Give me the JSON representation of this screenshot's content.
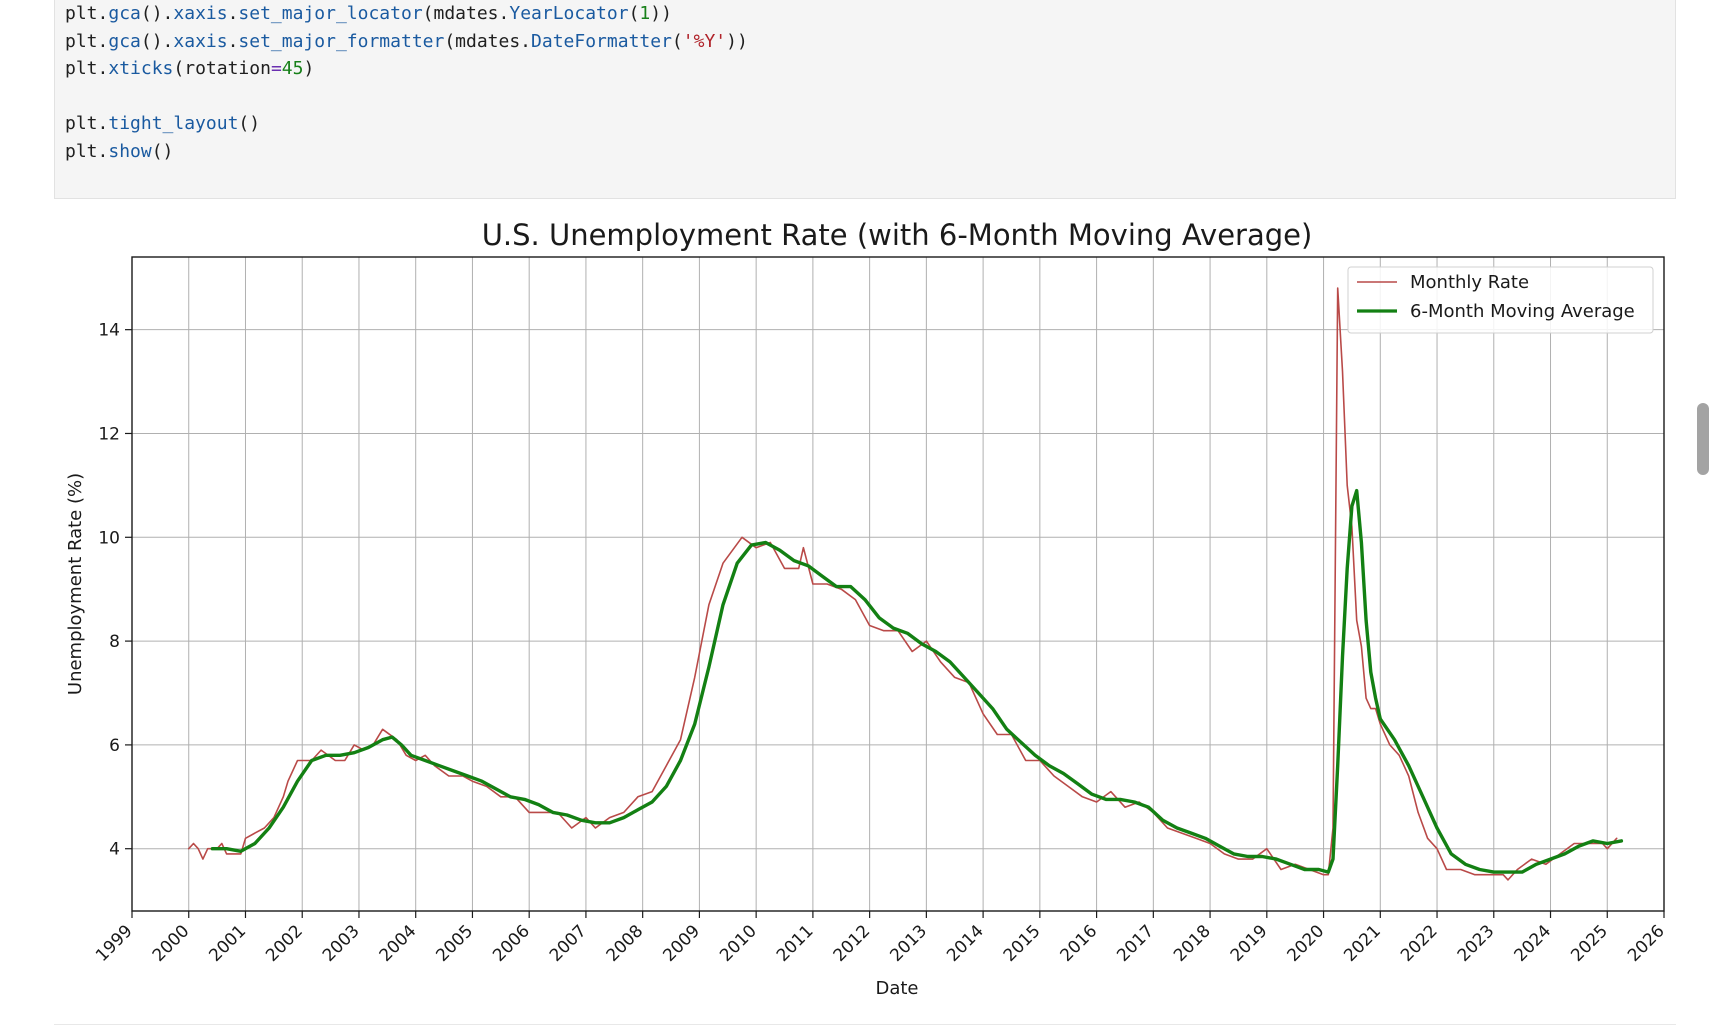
{
  "code_cell": {
    "lines": [
      [
        {
          "t": "plt",
          "c": "obj"
        },
        {
          "t": ".",
          "c": "obj"
        },
        {
          "t": "gca",
          "c": "fn"
        },
        {
          "t": "().",
          "c": "obj"
        },
        {
          "t": "xaxis",
          "c": "fn"
        },
        {
          "t": ".",
          "c": "obj"
        },
        {
          "t": "set_major_locator",
          "c": "fn"
        },
        {
          "t": "(mdates.",
          "c": "obj"
        },
        {
          "t": "YearLocator",
          "c": "fn"
        },
        {
          "t": "(",
          "c": "obj"
        },
        {
          "t": "1",
          "c": "num"
        },
        {
          "t": "))",
          "c": "obj"
        }
      ],
      [
        {
          "t": "plt",
          "c": "obj"
        },
        {
          "t": ".",
          "c": "obj"
        },
        {
          "t": "gca",
          "c": "fn"
        },
        {
          "t": "().",
          "c": "obj"
        },
        {
          "t": "xaxis",
          "c": "fn"
        },
        {
          "t": ".",
          "c": "obj"
        },
        {
          "t": "set_major_formatter",
          "c": "fn"
        },
        {
          "t": "(mdates.",
          "c": "obj"
        },
        {
          "t": "DateFormatter",
          "c": "fn"
        },
        {
          "t": "(",
          "c": "obj"
        },
        {
          "t": "'%Y'",
          "c": "str"
        },
        {
          "t": "))",
          "c": "obj"
        }
      ],
      [
        {
          "t": "plt",
          "c": "obj"
        },
        {
          "t": ".",
          "c": "obj"
        },
        {
          "t": "xticks",
          "c": "fn"
        },
        {
          "t": "(rotation",
          "c": "obj"
        },
        {
          "t": "=",
          "c": "op"
        },
        {
          "t": "45",
          "c": "num"
        },
        {
          "t": ")",
          "c": "obj"
        }
      ],
      [],
      [
        {
          "t": "plt",
          "c": "obj"
        },
        {
          "t": ".",
          "c": "obj"
        },
        {
          "t": "tight_layout",
          "c": "fn"
        },
        {
          "t": "()",
          "c": "obj"
        }
      ],
      [
        {
          "t": "plt",
          "c": "obj"
        },
        {
          "t": ".",
          "c": "obj"
        },
        {
          "t": "show",
          "c": "fn"
        },
        {
          "t": "()",
          "c": "obj"
        }
      ]
    ]
  },
  "colors": {
    "monthly": "#b94a48",
    "moving_avg": "#138013",
    "grid": "#b0b0b0",
    "code_bg": "#f5f5f5",
    "fn": "#1a5aa0",
    "num": "#18801a",
    "str": "#b0232a",
    "op": "#6a2fb0"
  },
  "chart_data": {
    "type": "line",
    "title": "U.S. Unemployment Rate (with 6-Month Moving Average)",
    "xlabel": "Date",
    "ylabel": "Unemployment Rate (%)",
    "xlim": [
      "1999-01",
      "2026-01"
    ],
    "ylim": [
      2.8,
      15.4
    ],
    "x_ticks": [
      "1999",
      "2000",
      "2001",
      "2002",
      "2003",
      "2004",
      "2005",
      "2006",
      "2007",
      "2008",
      "2009",
      "2010",
      "2011",
      "2012",
      "2013",
      "2014",
      "2015",
      "2016",
      "2017",
      "2018",
      "2019",
      "2020",
      "2021",
      "2022",
      "2023",
      "2024",
      "2025",
      "2026"
    ],
    "y_ticks": [
      4,
      6,
      8,
      10,
      12,
      14
    ],
    "grid": true,
    "legend_placement": "top-right",
    "series": [
      {
        "name": "Monthly Rate",
        "style": "thin",
        "points": [
          [
            "2000-01",
            4.0
          ],
          [
            "2000-02",
            4.1
          ],
          [
            "2000-03",
            4.0
          ],
          [
            "2000-04",
            3.8
          ],
          [
            "2000-05",
            4.0
          ],
          [
            "2000-06",
            4.0
          ],
          [
            "2000-07",
            4.0
          ],
          [
            "2000-08",
            4.1
          ],
          [
            "2000-09",
            3.9
          ],
          [
            "2000-10",
            3.9
          ],
          [
            "2000-11",
            3.9
          ],
          [
            "2000-12",
            3.9
          ],
          [
            "2001-01",
            4.2
          ],
          [
            "2001-03",
            4.3
          ],
          [
            "2001-05",
            4.4
          ],
          [
            "2001-07",
            4.6
          ],
          [
            "2001-09",
            5.0
          ],
          [
            "2001-10",
            5.3
          ],
          [
            "2001-12",
            5.7
          ],
          [
            "2002-03",
            5.7
          ],
          [
            "2002-05",
            5.9
          ],
          [
            "2002-08",
            5.7
          ],
          [
            "2002-10",
            5.7
          ],
          [
            "2002-12",
            6.0
          ],
          [
            "2003-02",
            5.9
          ],
          [
            "2003-04",
            6.0
          ],
          [
            "2003-06",
            6.3
          ],
          [
            "2003-09",
            6.1
          ],
          [
            "2003-11",
            5.8
          ],
          [
            "2004-01",
            5.7
          ],
          [
            "2004-03",
            5.8
          ],
          [
            "2004-05",
            5.6
          ],
          [
            "2004-08",
            5.4
          ],
          [
            "2004-11",
            5.4
          ],
          [
            "2005-01",
            5.3
          ],
          [
            "2005-04",
            5.2
          ],
          [
            "2005-07",
            5.0
          ],
          [
            "2005-10",
            5.0
          ],
          [
            "2006-01",
            4.7
          ],
          [
            "2006-04",
            4.7
          ],
          [
            "2006-07",
            4.7
          ],
          [
            "2006-10",
            4.4
          ],
          [
            "2007-01",
            4.6
          ],
          [
            "2007-03",
            4.4
          ],
          [
            "2007-06",
            4.6
          ],
          [
            "2007-09",
            4.7
          ],
          [
            "2007-12",
            5.0
          ],
          [
            "2008-03",
            5.1
          ],
          [
            "2008-06",
            5.6
          ],
          [
            "2008-09",
            6.1
          ],
          [
            "2008-12",
            7.3
          ],
          [
            "2009-03",
            8.7
          ],
          [
            "2009-06",
            9.5
          ],
          [
            "2009-10",
            10.0
          ],
          [
            "2010-01",
            9.8
          ],
          [
            "2010-04",
            9.9
          ],
          [
            "2010-07",
            9.4
          ],
          [
            "2010-10",
            9.4
          ],
          [
            "2010-11",
            9.8
          ],
          [
            "2011-01",
            9.1
          ],
          [
            "2011-04",
            9.1
          ],
          [
            "2011-07",
            9.0
          ],
          [
            "2011-10",
            8.8
          ],
          [
            "2012-01",
            8.3
          ],
          [
            "2012-04",
            8.2
          ],
          [
            "2012-07",
            8.2
          ],
          [
            "2012-10",
            7.8
          ],
          [
            "2013-01",
            8.0
          ],
          [
            "2013-04",
            7.6
          ],
          [
            "2013-07",
            7.3
          ],
          [
            "2013-10",
            7.2
          ],
          [
            "2014-01",
            6.6
          ],
          [
            "2014-04",
            6.2
          ],
          [
            "2014-07",
            6.2
          ],
          [
            "2014-10",
            5.7
          ],
          [
            "2015-01",
            5.7
          ],
          [
            "2015-04",
            5.4
          ],
          [
            "2015-07",
            5.2
          ],
          [
            "2015-10",
            5.0
          ],
          [
            "2016-01",
            4.9
          ],
          [
            "2016-04",
            5.1
          ],
          [
            "2016-07",
            4.8
          ],
          [
            "2016-10",
            4.9
          ],
          [
            "2017-01",
            4.7
          ],
          [
            "2017-04",
            4.4
          ],
          [
            "2017-07",
            4.3
          ],
          [
            "2017-10",
            4.2
          ],
          [
            "2018-01",
            4.1
          ],
          [
            "2018-04",
            3.9
          ],
          [
            "2018-07",
            3.8
          ],
          [
            "2018-10",
            3.8
          ],
          [
            "2019-01",
            4.0
          ],
          [
            "2019-04",
            3.6
          ],
          [
            "2019-07",
            3.7
          ],
          [
            "2019-10",
            3.6
          ],
          [
            "2020-01",
            3.5
          ],
          [
            "2020-02",
            3.5
          ],
          [
            "2020-03",
            4.4
          ],
          [
            "2020-04",
            14.8
          ],
          [
            "2020-05",
            13.2
          ],
          [
            "2020-06",
            11.0
          ],
          [
            "2020-07",
            10.2
          ],
          [
            "2020-08",
            8.4
          ],
          [
            "2020-09",
            7.9
          ],
          [
            "2020-10",
            6.9
          ],
          [
            "2020-11",
            6.7
          ],
          [
            "2020-12",
            6.7
          ],
          [
            "2021-01",
            6.4
          ],
          [
            "2021-03",
            6.0
          ],
          [
            "2021-05",
            5.8
          ],
          [
            "2021-07",
            5.4
          ],
          [
            "2021-09",
            4.7
          ],
          [
            "2021-11",
            4.2
          ],
          [
            "2022-01",
            4.0
          ],
          [
            "2022-03",
            3.6
          ],
          [
            "2022-06",
            3.6
          ],
          [
            "2022-09",
            3.5
          ],
          [
            "2022-12",
            3.5
          ],
          [
            "2023-03",
            3.5
          ],
          [
            "2023-04",
            3.4
          ],
          [
            "2023-06",
            3.6
          ],
          [
            "2023-09",
            3.8
          ],
          [
            "2023-12",
            3.7
          ],
          [
            "2024-03",
            3.9
          ],
          [
            "2024-06",
            4.1
          ],
          [
            "2024-09",
            4.1
          ],
          [
            "2024-12",
            4.1
          ],
          [
            "2025-01",
            4.0
          ],
          [
            "2025-03",
            4.2
          ]
        ]
      },
      {
        "name": "6-Month Moving Average",
        "style": "thick",
        "points": [
          [
            "2000-06",
            4.0
          ],
          [
            "2000-09",
            4.0
          ],
          [
            "2000-12",
            3.95
          ],
          [
            "2001-03",
            4.1
          ],
          [
            "2001-06",
            4.4
          ],
          [
            "2001-09",
            4.8
          ],
          [
            "2001-12",
            5.3
          ],
          [
            "2002-03",
            5.7
          ],
          [
            "2002-06",
            5.8
          ],
          [
            "2002-09",
            5.8
          ],
          [
            "2002-12",
            5.85
          ],
          [
            "2003-03",
            5.95
          ],
          [
            "2003-06",
            6.1
          ],
          [
            "2003-08",
            6.15
          ],
          [
            "2003-10",
            6.0
          ],
          [
            "2003-12",
            5.8
          ],
          [
            "2004-03",
            5.7
          ],
          [
            "2004-06",
            5.6
          ],
          [
            "2004-09",
            5.5
          ],
          [
            "2004-12",
            5.4
          ],
          [
            "2005-03",
            5.3
          ],
          [
            "2005-06",
            5.15
          ],
          [
            "2005-09",
            5.0
          ],
          [
            "2005-12",
            4.95
          ],
          [
            "2006-03",
            4.85
          ],
          [
            "2006-06",
            4.7
          ],
          [
            "2006-09",
            4.65
          ],
          [
            "2006-12",
            4.55
          ],
          [
            "2007-03",
            4.5
          ],
          [
            "2007-06",
            4.5
          ],
          [
            "2007-09",
            4.6
          ],
          [
            "2007-12",
            4.75
          ],
          [
            "2008-03",
            4.9
          ],
          [
            "2008-06",
            5.2
          ],
          [
            "2008-09",
            5.7
          ],
          [
            "2008-12",
            6.4
          ],
          [
            "2009-03",
            7.5
          ],
          [
            "2009-06",
            8.7
          ],
          [
            "2009-09",
            9.5
          ],
          [
            "2009-12",
            9.85
          ],
          [
            "2010-03",
            9.9
          ],
          [
            "2010-06",
            9.75
          ],
          [
            "2010-09",
            9.55
          ],
          [
            "2010-12",
            9.45
          ],
          [
            "2011-03",
            9.25
          ],
          [
            "2011-06",
            9.05
          ],
          [
            "2011-09",
            9.05
          ],
          [
            "2011-12",
            8.8
          ],
          [
            "2012-03",
            8.45
          ],
          [
            "2012-06",
            8.25
          ],
          [
            "2012-09",
            8.15
          ],
          [
            "2012-12",
            7.95
          ],
          [
            "2013-03",
            7.8
          ],
          [
            "2013-06",
            7.6
          ],
          [
            "2013-09",
            7.3
          ],
          [
            "2013-12",
            7.0
          ],
          [
            "2014-03",
            6.7
          ],
          [
            "2014-06",
            6.3
          ],
          [
            "2014-09",
            6.05
          ],
          [
            "2014-12",
            5.8
          ],
          [
            "2015-03",
            5.6
          ],
          [
            "2015-06",
            5.45
          ],
          [
            "2015-09",
            5.25
          ],
          [
            "2015-12",
            5.05
          ],
          [
            "2016-03",
            4.95
          ],
          [
            "2016-06",
            4.95
          ],
          [
            "2016-09",
            4.9
          ],
          [
            "2016-12",
            4.8
          ],
          [
            "2017-03",
            4.55
          ],
          [
            "2017-06",
            4.4
          ],
          [
            "2017-09",
            4.3
          ],
          [
            "2017-12",
            4.2
          ],
          [
            "2018-03",
            4.05
          ],
          [
            "2018-06",
            3.9
          ],
          [
            "2018-09",
            3.85
          ],
          [
            "2018-12",
            3.85
          ],
          [
            "2019-03",
            3.8
          ],
          [
            "2019-06",
            3.7
          ],
          [
            "2019-09",
            3.6
          ],
          [
            "2019-12",
            3.6
          ],
          [
            "2020-02",
            3.55
          ],
          [
            "2020-03",
            3.8
          ],
          [
            "2020-04",
            5.6
          ],
          [
            "2020-05",
            7.7
          ],
          [
            "2020-06",
            9.4
          ],
          [
            "2020-07",
            10.6
          ],
          [
            "2020-08",
            10.9
          ],
          [
            "2020-09",
            9.9
          ],
          [
            "2020-10",
            8.4
          ],
          [
            "2020-11",
            7.4
          ],
          [
            "2020-12",
            6.9
          ],
          [
            "2021-01",
            6.5
          ],
          [
            "2021-04",
            6.1
          ],
          [
            "2021-07",
            5.6
          ],
          [
            "2021-10",
            5.0
          ],
          [
            "2022-01",
            4.4
          ],
          [
            "2022-04",
            3.9
          ],
          [
            "2022-07",
            3.7
          ],
          [
            "2022-10",
            3.6
          ],
          [
            "2023-01",
            3.55
          ],
          [
            "2023-04",
            3.55
          ],
          [
            "2023-07",
            3.55
          ],
          [
            "2023-10",
            3.7
          ],
          [
            "2024-01",
            3.8
          ],
          [
            "2024-04",
            3.9
          ],
          [
            "2024-07",
            4.05
          ],
          [
            "2024-10",
            4.15
          ],
          [
            "2025-01",
            4.1
          ],
          [
            "2025-04",
            4.15
          ]
        ]
      }
    ]
  }
}
